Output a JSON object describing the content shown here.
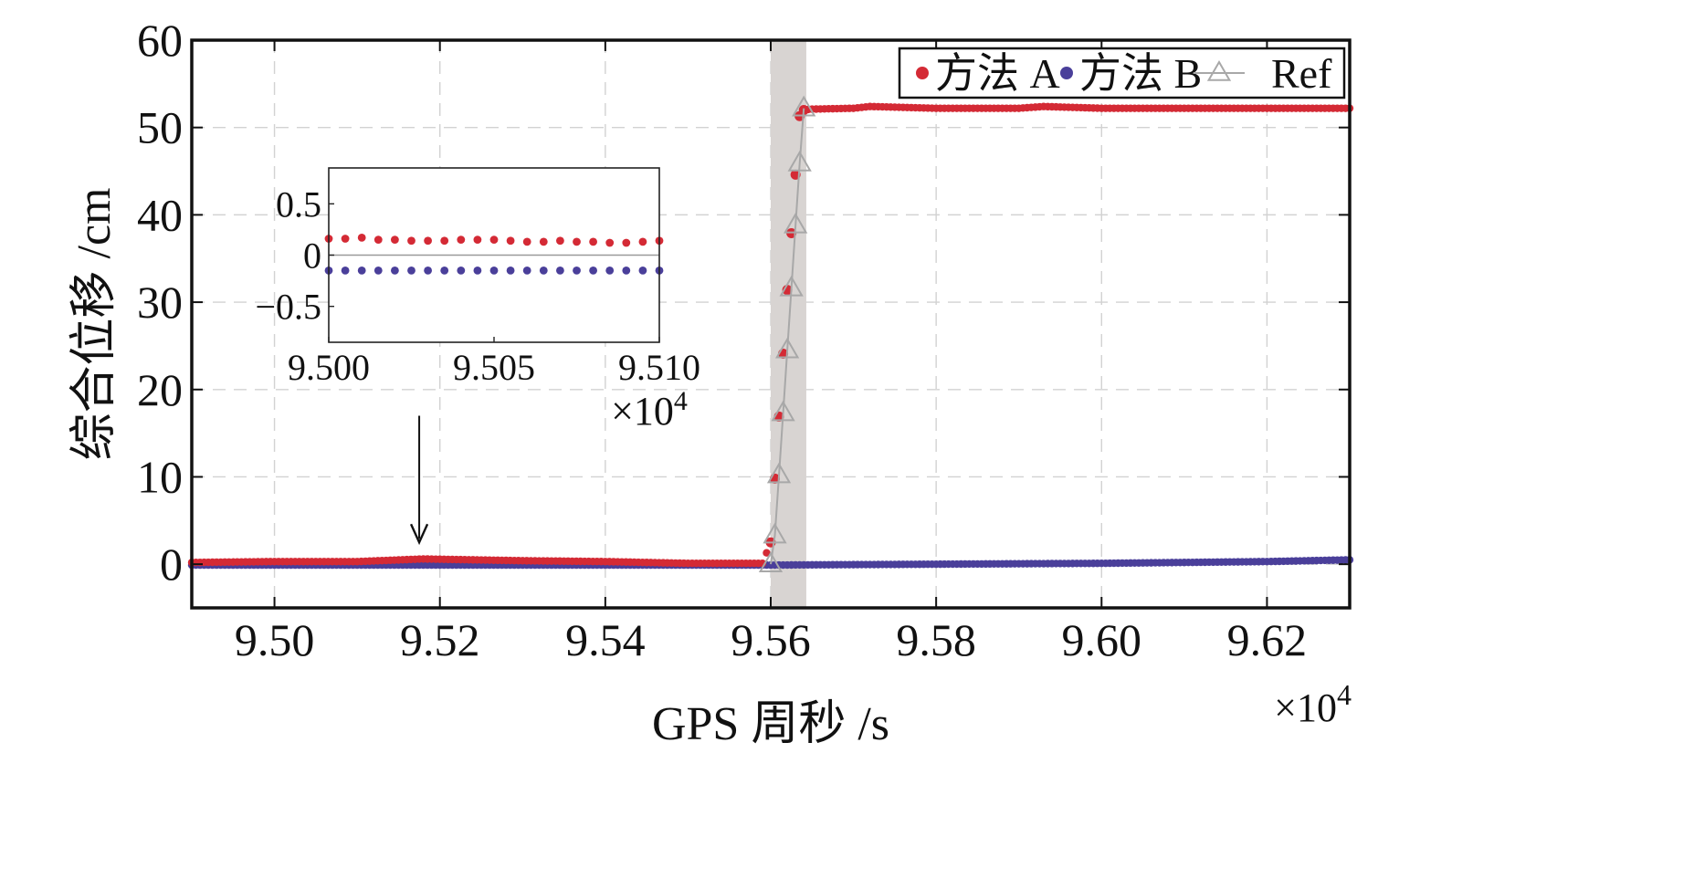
{
  "chart_data": {
    "type": "line",
    "xlabel": "GPS 周秒 /s",
    "ylabel": "综合位移 /cm",
    "x_multiplier": "×10",
    "x_multiplier_exp": "4",
    "xlim": [
      9.49,
      9.63
    ],
    "ylim": [
      -5,
      60
    ],
    "xticks": [
      9.5,
      9.52,
      9.54,
      9.56,
      9.58,
      9.6,
      9.62
    ],
    "xtick_labels": [
      "9.50",
      "9.52",
      "9.54",
      "9.56",
      "9.58",
      "9.60",
      "9.62"
    ],
    "yticks": [
      0,
      10,
      20,
      30,
      40,
      50,
      60
    ],
    "ytick_labels": [
      "0",
      "10",
      "20",
      "30",
      "40",
      "50",
      "60"
    ],
    "grid": true,
    "legend_position": "top-right",
    "shaded_region": {
      "x": [
        9.56,
        9.5643
      ]
    },
    "annotation_arrow": {
      "x": 9.5175,
      "from_y": 17,
      "to_y": 2.5
    },
    "series": [
      {
        "name": "方法 A",
        "color": "#d42a35",
        "marker": "dot",
        "x": [
          9.49,
          9.5,
          9.51,
          9.518,
          9.53,
          9.54,
          9.55,
          9.559,
          9.56,
          9.5605,
          9.561,
          9.5615,
          9.562,
          9.5625,
          9.563,
          9.5635,
          9.564,
          9.565,
          9.57,
          9.572,
          9.58,
          9.59,
          9.593,
          9.6,
          9.61,
          9.62,
          9.63
        ],
        "y": [
          0.2,
          0.3,
          0.3,
          0.6,
          0.4,
          0.3,
          0.1,
          0.1,
          2.5,
          9.8,
          16.9,
          24.1,
          31.4,
          37.9,
          44.6,
          51.3,
          52.0,
          52.1,
          52.2,
          52.4,
          52.2,
          52.2,
          52.4,
          52.2,
          52.2,
          52.2,
          52.2
        ]
      },
      {
        "name": "方法 B",
        "color": "#4a3f9a",
        "marker": "dot",
        "x": [
          9.49,
          9.5,
          9.52,
          9.54,
          9.56,
          9.58,
          9.6,
          9.62,
          9.63
        ],
        "y": [
          -0.1,
          -0.1,
          -0.1,
          -0.1,
          -0.1,
          0.0,
          0.1,
          0.3,
          0.5
        ]
      },
      {
        "name": "Ref",
        "color": "#a8a8a8",
        "marker": "triangle",
        "x": [
          9.56,
          9.5605,
          9.561,
          9.5615,
          9.562,
          9.5625,
          9.563,
          9.5635,
          9.564
        ],
        "y": [
          0.0,
          3.3,
          10.2,
          17.3,
          24.5,
          31.6,
          38.8,
          45.9,
          52.2
        ]
      }
    ],
    "inset": {
      "xlim": [
        9.5,
        9.51
      ],
      "ylim": [
        -0.85,
        0.85
      ],
      "xticks": [
        9.5,
        9.505,
        9.51
      ],
      "xtick_labels": [
        "9.500",
        "9.505",
        "9.510"
      ],
      "yticks": [
        0.5,
        0,
        -0.5
      ],
      "ytick_labels": [
        "0.5",
        "0",
        "−0.5"
      ],
      "x_multiplier": "×10",
      "x_multiplier_exp": "4",
      "zero_line": true,
      "series": [
        {
          "name": "方法 A",
          "color": "#d42a35",
          "y": [
            0.16,
            0.16,
            0.17,
            0.15,
            0.15,
            0.14,
            0.14,
            0.14,
            0.15,
            0.15,
            0.15,
            0.14,
            0.13,
            0.13,
            0.14,
            0.13,
            0.13,
            0.12,
            0.12,
            0.13,
            0.14
          ]
        },
        {
          "name": "方法 B",
          "color": "#4a3f9a",
          "y": [
            -0.15,
            -0.15,
            -0.15,
            -0.15,
            -0.15,
            -0.15,
            -0.15,
            -0.15,
            -0.15,
            -0.15,
            -0.15,
            -0.15,
            -0.15,
            -0.15,
            -0.15,
            -0.15,
            -0.15,
            -0.15,
            -0.15,
            -0.15,
            -0.15
          ]
        }
      ]
    }
  }
}
